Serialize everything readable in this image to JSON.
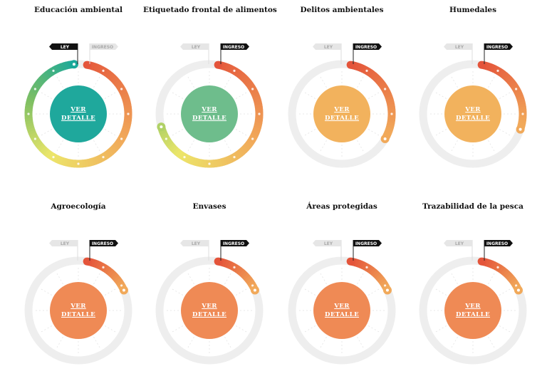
{
  "button_label": "VER\nDETALLE",
  "flag_labels": {
    "ley": "LEY",
    "ingreso": "INGRESO"
  },
  "colors": {
    "track": "#eeeeee",
    "tick": "#ffffff",
    "red": "#e4543a",
    "orange": "#f1a95a",
    "yellow": "#ece66a",
    "green": "#7dbf63",
    "teal": "#1aa89a",
    "flag_active": "#111111",
    "flag_inactive": "#e6e6e6",
    "center_teal": "#1fa89c",
    "center_green": "#6ebd8c",
    "center_yellow_orange": "#f2b25d",
    "center_orange": "#ef8a55"
  },
  "chart_data": {
    "type": "radial-progress",
    "total_steps": 12,
    "items": [
      {
        "title": "Educación ambiental",
        "progress_steps": 12,
        "active_flag": "ley",
        "center_color": "#1fa89c"
      },
      {
        "title": "Etiquetado frontal de alimentos",
        "progress_steps": 8.5,
        "active_flag": "ingreso",
        "center_color": "#6ebd8c"
      },
      {
        "title": "Delitos ambientales",
        "progress_steps": 4,
        "active_flag": "ingreso",
        "center_color": "#f2b25d"
      },
      {
        "title": "Humedales",
        "progress_steps": 3.6,
        "active_flag": "ingreso",
        "center_color": "#f2b25d"
      },
      {
        "title": "Agroecología",
        "progress_steps": 2.2,
        "active_flag": "ingreso",
        "center_color": "#ef8a55"
      },
      {
        "title": "Envases",
        "progress_steps": 2.2,
        "active_flag": "ingreso",
        "center_color": "#ef8a55"
      },
      {
        "title": "Áreas protegidas",
        "progress_steps": 2.2,
        "active_flag": "ingreso",
        "center_color": "#ef8a55"
      },
      {
        "title": "Trazabilidad de la pesca",
        "progress_steps": 2.2,
        "active_flag": "ingreso",
        "center_color": "#ef8a55"
      }
    ]
  }
}
